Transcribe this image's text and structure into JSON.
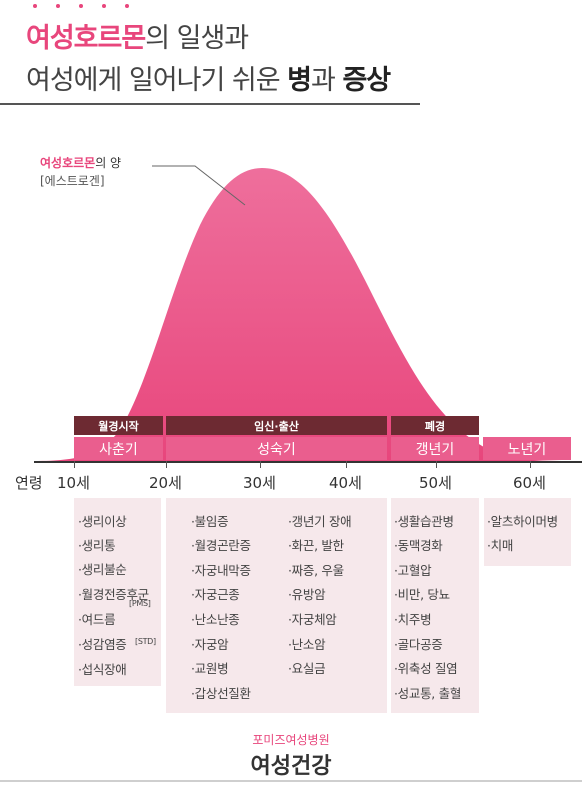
{
  "title": {
    "line1_highlight": "여성호르몬",
    "line1_rest": "의 일생과",
    "line2_part1": "여성에게 일어나기 쉬운 ",
    "line2_bold1": "병",
    "line2_part2": "과 ",
    "line2_bold2": "증상"
  },
  "hormone_label": {
    "highlight": "여성호르몬",
    "rest": "의 양",
    "sub": "[에스트로겐]"
  },
  "stages_top": [
    "월경시작",
    "임신·출산",
    "폐경"
  ],
  "stages": [
    "사춘기",
    "성숙기",
    "갱년기",
    "노년기"
  ],
  "axis_title": "연령",
  "ages": [
    "10세",
    "20세",
    "30세",
    "40세",
    "50세",
    "60세"
  ],
  "columns": {
    "puberty": [
      "·생리이상",
      "·생리통",
      "·생리불순",
      "·월경전증후군",
      "·여드름",
      "·성감염증",
      "·섭식장애"
    ],
    "puberty_tags": {
      "pms": "[PMS]",
      "std": "[STD]"
    },
    "mature_left": [
      "·불임증",
      "·월경곤란증",
      "·자궁내막증",
      "·자궁근종",
      "·난소난종",
      "·자궁암",
      "·교원병",
      "·갑상선질환"
    ],
    "mature_right": [
      "·갱년기 장애",
      "·화끈, 발한",
      "·짜증, 우울",
      "·유방암",
      "·자궁체암",
      "·난소암",
      "·요실금"
    ],
    "menopause": [
      "·생활습관병",
      "·동맥경화",
      "·고혈압",
      "·비만, 당뇨",
      "·치주병",
      "·골다공증",
      "·위축성 질염",
      "·성교통, 출혈"
    ],
    "senior": [
      "·알츠하이머병",
      "·치매"
    ]
  },
  "footer": {
    "sub": "포미즈여성병원",
    "main": "여성건강"
  },
  "colors": {
    "accent": "#e8467c",
    "curve": "#ea5e8e",
    "dark_band": "#6d2a32",
    "list_bg": "#f6e8eb"
  }
}
